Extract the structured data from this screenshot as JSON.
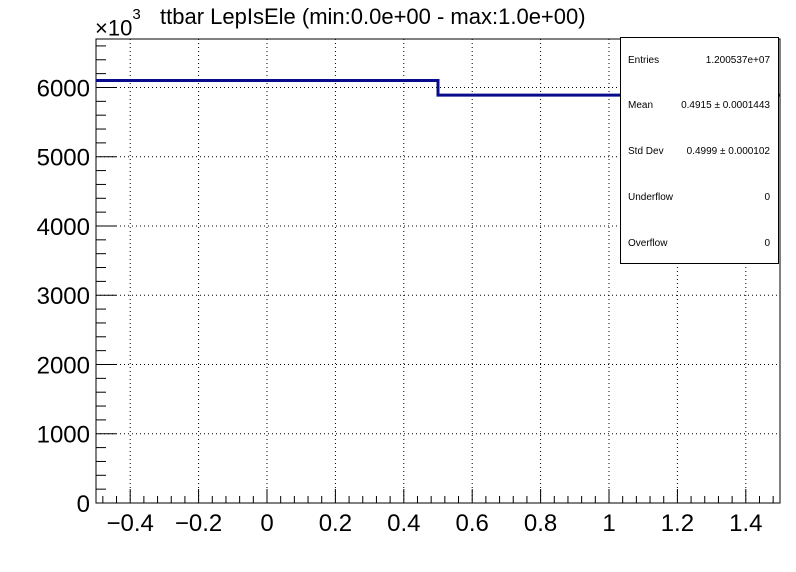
{
  "chart_data": {
    "type": "histogram",
    "title": "ttbar LepIsEle (min:0.0e+00 - max:1.0e+00)",
    "y_multiplier_label": "×10",
    "y_multiplier_exponent": "3",
    "xlim": [
      -0.5,
      1.5
    ],
    "ylim": [
      0,
      6700
    ],
    "x_ticks": [
      -0.4,
      -0.2,
      0,
      0.2,
      0.4,
      0.6,
      0.8,
      1,
      1.2,
      1.4
    ],
    "x_tick_labels": [
      "−0.4",
      "−0.2",
      "0",
      "0.2",
      "0.4",
      "0.6",
      "0.8",
      "1",
      "1.2",
      "1.4"
    ],
    "y_ticks": [
      0,
      1000,
      2000,
      3000,
      4000,
      5000,
      6000
    ],
    "y_tick_labels": [
      "0",
      "1000",
      "2000",
      "3000",
      "4000",
      "5000",
      "6000"
    ],
    "grid": true,
    "series": [
      {
        "bin_edges": [
          -0.5,
          0.5,
          1.5
        ],
        "values": [
          6100,
          5890
        ],
        "color": "#0a0a8c"
      }
    ],
    "stats_box": {
      "position": "top-right",
      "rows": [
        {
          "label": "Entries",
          "value": "1.200537e+07"
        },
        {
          "label": "Mean",
          "value": "0.4915 ± 0.0001443"
        },
        {
          "label": "Std Dev",
          "value": "0.4999 ± 0.000102"
        },
        {
          "label": "Underflow",
          "value": "0"
        },
        {
          "label": "Overflow",
          "value": "0"
        }
      ]
    }
  }
}
